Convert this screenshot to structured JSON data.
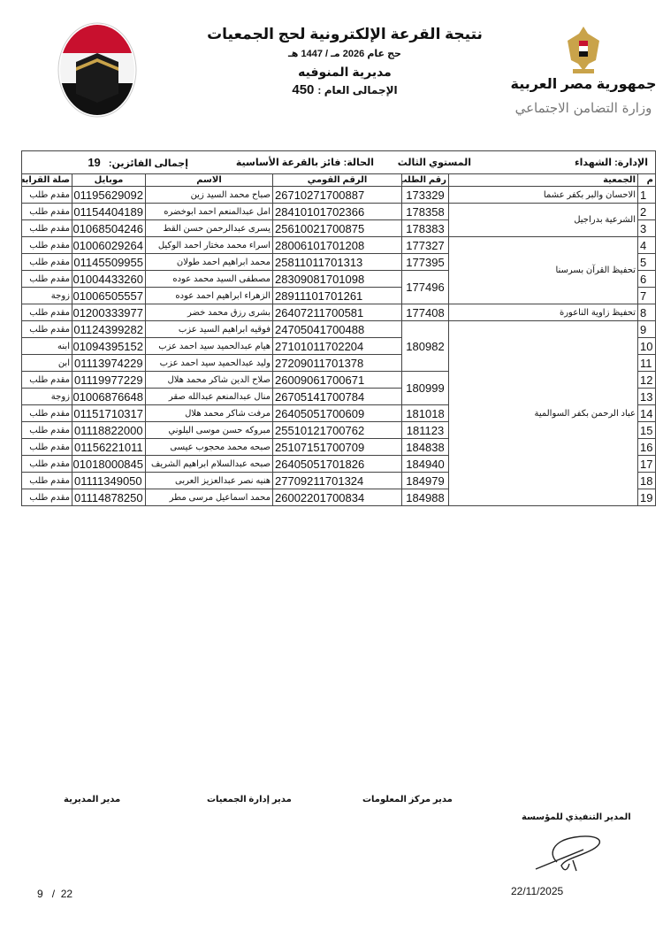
{
  "header": {
    "title": "نتيجة القرعة الإلكترونية لحج الجمعيات",
    "year": "حج عام 2026 مـ / 1447 هـ",
    "directorate": "مديرية المنوفيه",
    "total_label": "الإجمالى العام :",
    "total_value": "450",
    "republic": "جمهورية مصر العربية",
    "ministry": "وزارة التضامن الاجتماعي"
  },
  "info": {
    "admin_label": "الإدارة:",
    "admin_value": "الشهداء",
    "level": "المستوي الثالث",
    "status_label": "الحالة:",
    "status_value": "فائز بالقرعة الأساسية",
    "winners_label": "إجمالى الفائزين:",
    "winners_value": "19"
  },
  "columns": [
    "م",
    "الجمعية",
    "رقم الطلب",
    "الرقم القومي",
    "الاسم",
    "موبايل",
    "صلة القرابه"
  ],
  "rows": [
    {
      "m": "1",
      "assoc": "الاحسان والبر بكفر عشما",
      "req": "173329",
      "nid": "26710271700887",
      "name": "صباح محمد السيد زين",
      "mobile": "01195629092",
      "rel": "مقدم طلب"
    },
    {
      "m": "2",
      "assoc": "الشرعية بدراجيل",
      "req": "178358",
      "nid": "28410101702366",
      "name": "امل عبدالمنعم احمد ابوخضره",
      "mobile": "01154404189",
      "rel": "مقدم طلب"
    },
    {
      "m": "3",
      "assoc": "الشرعية بدراجيل",
      "req": "178383",
      "nid": "25610021700875",
      "name": "يسرى عبدالرحمن حسن القط",
      "mobile": "01068504246",
      "rel": "مقدم طلب"
    },
    {
      "m": "4",
      "assoc": "تحفيظ القرآن بسرسنا",
      "req": "177327",
      "nid": "28006101701208",
      "name": "اسراء محمد مختار احمد الوكيل",
      "mobile": "01006029264",
      "rel": "مقدم طلب"
    },
    {
      "m": "5",
      "assoc": "تحفيظ القرآن بسرسنا",
      "req": "177395",
      "nid": "25811011701313",
      "name": "محمد ابراهيم احمد طولان",
      "mobile": "01145509955",
      "rel": "مقدم طلب"
    },
    {
      "m": "6",
      "assoc": "تحفيظ القرآن بسرسنا",
      "req": "177496",
      "nid": "28309081701098",
      "name": "مصطفى السيد محمد عوده",
      "mobile": "01004433260",
      "rel": "مقدم طلب"
    },
    {
      "m": "7",
      "assoc": "تحفيظ القرآن بسرسنا",
      "req": "177496",
      "nid": "28911101701261",
      "name": "الزهراء ابراهيم احمد عوده",
      "mobile": "01006505557",
      "rel": "زوجة"
    },
    {
      "m": "8",
      "assoc": "تحفيظ زاوية الناعورة",
      "req": "177408",
      "nid": "26407211700581",
      "name": "بشرى رزق محمد خضر",
      "mobile": "01200333977",
      "rel": "مقدم طلب"
    },
    {
      "m": "9",
      "assoc": "عباد الرحمن بكفر السوالمية",
      "req": "180982",
      "nid": "24705041700488",
      "name": "فوقيه ابراهيم السيد عزب",
      "mobile": "01124399282",
      "rel": "مقدم طلب"
    },
    {
      "m": "10",
      "assoc": "عباد الرحمن بكفر السوالمية",
      "req": "180982",
      "nid": "27101011702204",
      "name": "هيام عبدالحميد سيد احمد عزب",
      "mobile": "01094395152",
      "rel": "ابنه"
    },
    {
      "m": "11",
      "assoc": "عباد الرحمن بكفر السوالمية",
      "req": "180982",
      "nid": "27209011701378",
      "name": "وليد عبدالحميد سيد احمد عزب",
      "mobile": "01113974229",
      "rel": "ابن"
    },
    {
      "m": "12",
      "assoc": "عباد الرحمن بكفر السوالمية",
      "req": "180999",
      "nid": "26009061700671",
      "name": "صلاح الدين شاكر محمد هلال",
      "mobile": "01119977229",
      "rel": "مقدم طلب"
    },
    {
      "m": "13",
      "assoc": "عباد الرحمن بكفر السوالمية",
      "req": "180999",
      "nid": "26705141700784",
      "name": "منال عبدالمنعم عبدالله صقر",
      "mobile": "01006876648",
      "rel": "زوجة"
    },
    {
      "m": "14",
      "assoc": "عباد الرحمن بكفر السوالمية",
      "req": "181018",
      "nid": "26405051700609",
      "name": "مرفت شاكر محمد هلال",
      "mobile": "01151710317",
      "rel": "مقدم طلب"
    },
    {
      "m": "15",
      "assoc": "عباد الرحمن بكفر السوالمية",
      "req": "181123",
      "nid": "25510121700762",
      "name": "مبروكه حسن موسى البلوني",
      "mobile": "01118822000",
      "rel": "مقدم طلب"
    },
    {
      "m": "16",
      "assoc": "عباد الرحمن بكفر السوالمية",
      "req": "184838",
      "nid": "25107151700709",
      "name": "صبحه محمد محجوب عيسى",
      "mobile": "01156221011",
      "rel": "مقدم طلب"
    },
    {
      "m": "17",
      "assoc": "عباد الرحمن بكفر السوالمية",
      "req": "184940",
      "nid": "26405051701826",
      "name": "صبحه عبدالسلام ابراهيم الشريف",
      "mobile": "01018000845",
      "rel": "مقدم طلب"
    },
    {
      "m": "18",
      "assoc": "عباد الرحمن بكفر السوالمية",
      "req": "184979",
      "nid": "27709211701324",
      "name": "هنيه نصر عبدالعزيز العربى",
      "mobile": "01111349050",
      "rel": "مقدم طلب"
    },
    {
      "m": "19",
      "assoc": "عباد الرحمن بكفر السوالمية",
      "req": "184988",
      "nid": "26002201700834",
      "name": "محمد اسماعيل مرسى مطر",
      "mobile": "01114878250",
      "rel": "مقدم طلب"
    }
  ],
  "footer": {
    "sig1": "مدير المديرية",
    "sig2": "مدير إدارة الجمعيات",
    "sig3": "مدير مركز المعلومات",
    "sig4": "المدير التنفيذي للمؤسسة",
    "date": "22/11/2025",
    "page_current": "9",
    "page_sep": "/",
    "page_total": "22"
  }
}
